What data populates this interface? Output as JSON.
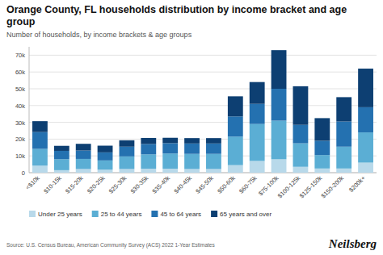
{
  "chart_data": {
    "type": "bar",
    "stacked": true,
    "title": "Orange County, FL households distribution by income bracket and age group",
    "subtitle": "Number of households, by income brackets & age groups",
    "source": "Source: U.S. Census Bureau, American Community Survey (ACS) 2022 1-Year Estimates",
    "annotations": [
      {
        "text": "Neilsberg"
      }
    ],
    "categories": [
      "<$10k",
      "$10-15k",
      "$15-20k",
      "$20-25k",
      "$25-30k",
      "$30-35k",
      "$35-40k",
      "$40-45k",
      "$45-50k",
      "$50-60k",
      "$60-75k",
      "$75-100k",
      "$100-125k",
      "$125-150k",
      "$150-200k",
      "$200k+"
    ],
    "series": [
      {
        "name": "Under 25 years",
        "color": "#b8d9ea",
        "values": [
          4200,
          1500,
          2200,
          1800,
          2200,
          2400,
          2400,
          2200,
          2200,
          4500,
          7000,
          8000,
          3500,
          2500,
          2500,
          6000
        ]
      },
      {
        "name": "25 to 44 years",
        "color": "#5baed4",
        "values": [
          10000,
          6500,
          6000,
          5500,
          7500,
          8500,
          9000,
          9000,
          9000,
          17000,
          22000,
          23000,
          14000,
          8000,
          13000,
          18000
        ]
      },
      {
        "name": "45 to 64 years",
        "color": "#2471b0",
        "values": [
          10000,
          5000,
          5000,
          4800,
          5800,
          6200,
          6200,
          6200,
          6200,
          12000,
          12000,
          19000,
          11000,
          8500,
          15000,
          15000
        ]
      },
      {
        "name": "65 years and over",
        "color": "#0d3f72",
        "values": [
          6500,
          3000,
          4000,
          4000,
          3800,
          3600,
          3200,
          3200,
          3200,
          12000,
          13000,
          23000,
          23000,
          13500,
          14500,
          23000
        ]
      }
    ],
    "ylim": [
      0,
      75000
    ],
    "yticks": [
      0,
      {
        "value": 10000,
        "label": "10k"
      },
      {
        "value": 20000,
        "label": "20k"
      },
      {
        "value": 30000,
        "label": "30k"
      },
      {
        "value": 40000,
        "label": "40k"
      },
      {
        "value": 50000,
        "label": "50k"
      },
      {
        "value": 60000,
        "label": "60k"
      },
      {
        "value": 70000,
        "label": "70k"
      }
    ],
    "grid": true,
    "legend": "bottom"
  }
}
